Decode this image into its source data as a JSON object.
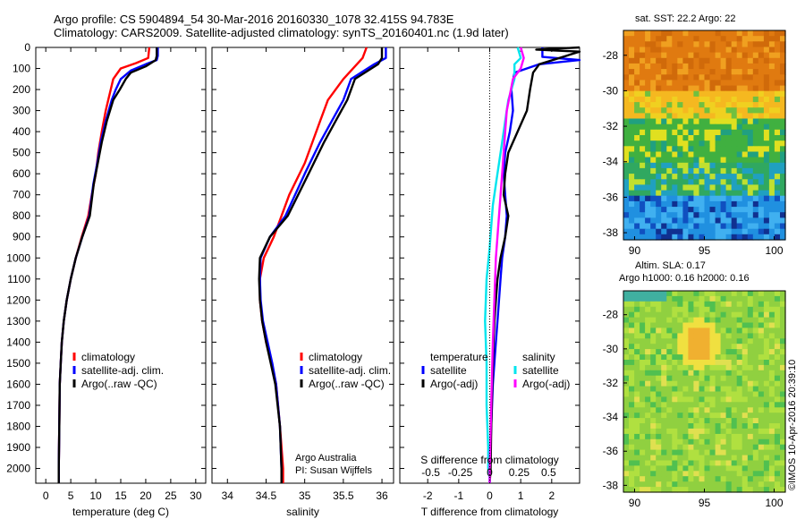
{
  "header": {
    "line1": "Argo profile: CS 5904894_54 30-Mar-2016 20160330_1078 32.415S 94.783E",
    "line2": "Climatology: CARS2009. Satellite-adjusted climatology: synTS_20160401.nc (1.9d later)"
  },
  "credit": {
    "line1": "Argo Australia",
    "line2": "PI: Susan Wijffels"
  },
  "watermark": "©IMOS 10-Apr-2016 20:39:10",
  "map_titles": {
    "sst": "sat. SST: 22.2 Argo: 22",
    "sla1": "Altim. SLA: 0.17",
    "sla2": "Argo h1000: 0.16 h2000: 0.16"
  },
  "colors": {
    "climatology": "#ff0000",
    "satellite": "#0000ff",
    "argo": "#000000",
    "s_satellite": "#00e5ee",
    "s_argo": "#ff00ff"
  },
  "chart_data": [
    {
      "type": "line",
      "title": "",
      "xlabel": "temperature (deg C)",
      "ylabel": "",
      "xlim": [
        -2,
        32
      ],
      "xticks": [
        0,
        5,
        10,
        15,
        20,
        25,
        30
      ],
      "ylim": [
        2070,
        0
      ],
      "yticks": [
        0,
        100,
        200,
        300,
        400,
        500,
        600,
        700,
        800,
        900,
        1000,
        1100,
        1200,
        1300,
        1400,
        1500,
        1600,
        1700,
        1800,
        1900,
        2000
      ],
      "legend": [
        "climatology",
        "satellite-adj. clim.",
        "Argo(..raw -QC)"
      ],
      "series": [
        {
          "name": "climatology",
          "color": "#ff0000",
          "x": [
            20.7,
            20.5,
            18,
            15,
            13.5,
            13,
            12.5,
            12,
            11.2,
            10.5,
            10,
            9.2,
            8.5,
            7.2,
            6,
            5,
            4.2,
            3.6,
            3.2,
            3,
            2.8,
            2.7,
            2.6,
            2.6
          ],
          "y": [
            0,
            50,
            75,
            100,
            150,
            200,
            250,
            300,
            400,
            500,
            600,
            700,
            800,
            900,
            1000,
            1100,
            1200,
            1300,
            1400,
            1500,
            1600,
            1800,
            2000,
            2070
          ]
        },
        {
          "name": "satellite-adj. clim.",
          "color": "#0000ff",
          "x": [
            22.4,
            22.4,
            22.2,
            20,
            17,
            15,
            14,
            13.2,
            12,
            11,
            10.3,
            9.5,
            8.7,
            7.3,
            6,
            5,
            4.2,
            3.6,
            3.2,
            3,
            2.8,
            2.7,
            2.6,
            2.6
          ],
          "y": [
            0,
            40,
            60,
            80,
            110,
            150,
            200,
            250,
            350,
            450,
            550,
            650,
            800,
            900,
            1000,
            1100,
            1200,
            1300,
            1400,
            1500,
            1600,
            1800,
            2000,
            2070
          ]
        },
        {
          "name": "Argo(..raw -QC)",
          "color": "#000000",
          "x": [
            22.2,
            22.2,
            22,
            20,
            17,
            16,
            14.8,
            13.5,
            12.2,
            11.2,
            10.4,
            9.6,
            8.8,
            7.3,
            6,
            5,
            4.2,
            3.6,
            3.2,
            3,
            2.8,
            2.7,
            2.6,
            2.6
          ],
          "y": [
            0,
            40,
            60,
            90,
            120,
            150,
            200,
            250,
            350,
            450,
            550,
            650,
            800,
            900,
            1000,
            1100,
            1200,
            1300,
            1400,
            1500,
            1600,
            1800,
            2000,
            2070
          ]
        }
      ]
    },
    {
      "type": "line",
      "title": "",
      "xlabel": "salinity",
      "ylabel": "",
      "xlim": [
        33.8,
        36.15
      ],
      "xticks": [
        34,
        34.5,
        35,
        35.5,
        36
      ],
      "ylim": [
        2070,
        0
      ],
      "legend": [
        "climatology",
        "satellite-adj. clim.",
        "Argo(..raw -QC)"
      ],
      "series": [
        {
          "name": "climatology",
          "color": "#ff0000",
          "x": [
            35.8,
            35.75,
            35.5,
            35.3,
            35.2,
            35.1,
            35.0,
            34.8,
            34.6,
            34.47,
            34.42,
            34.42,
            34.45,
            34.5,
            34.57,
            34.63,
            34.68,
            34.72,
            34.72
          ],
          "y": [
            0,
            50,
            150,
            250,
            350,
            450,
            550,
            700,
            900,
            1000,
            1100,
            1200,
            1300,
            1400,
            1500,
            1600,
            1800,
            2000,
            2070
          ]
        },
        {
          "name": "satellite-adj. clim.",
          "color": "#0000ff",
          "x": [
            36.05,
            36.05,
            35.9,
            35.6,
            35.5,
            35.35,
            35.2,
            35.0,
            34.75,
            34.55,
            34.43,
            34.42,
            34.43,
            34.46,
            34.52,
            34.58,
            34.63,
            34.68,
            34.7,
            34.7
          ],
          "y": [
            0,
            50,
            80,
            150,
            250,
            350,
            450,
            600,
            800,
            900,
            1000,
            1100,
            1200,
            1300,
            1400,
            1500,
            1600,
            1800,
            2000,
            2070
          ]
        },
        {
          "name": "Argo(..raw -QC)",
          "color": "#000000",
          "x": [
            36.0,
            36.0,
            35.95,
            35.65,
            35.55,
            35.4,
            35.25,
            35.05,
            34.78,
            34.55,
            34.42,
            34.41,
            34.42,
            34.45,
            34.5,
            34.56,
            34.62,
            34.68,
            34.7,
            34.7
          ],
          "y": [
            0,
            50,
            80,
            150,
            250,
            350,
            450,
            600,
            800,
            900,
            1000,
            1100,
            1200,
            1300,
            1400,
            1500,
            1600,
            1800,
            2000,
            2070
          ]
        }
      ]
    },
    {
      "type": "line",
      "title": "",
      "xlabel": "T difference from climatology",
      "ylabel": "",
      "xlim": [
        -2.9,
        2.9
      ],
      "xticks": [
        -2,
        -1,
        0,
        1,
        2
      ],
      "top_axis_label": "S difference from climatology",
      "top_axis_ticks": [
        "-0.5",
        "-0.25",
        "0",
        "0.25",
        "0.5"
      ],
      "ylim": [
        2070,
        0
      ],
      "legend_groups": [
        "temperature",
        "salinity"
      ],
      "legend": [
        "satellite",
        "Argo(-adj)",
        "satellite",
        "Argo(-adj)"
      ],
      "series": [
        {
          "name": "satellite",
          "color": "#0000ff",
          "x": [
            1.7,
            1.7,
            2.9,
            1.6,
            0.8,
            0.7,
            0.75,
            0.65,
            0.5,
            0.45,
            0.5,
            0.55,
            0.5,
            0.4,
            0.35,
            0.3,
            0.25,
            0.2,
            0.15,
            0.1,
            0.05,
            0.0,
            0.0
          ],
          "y": [
            0,
            45,
            60,
            80,
            120,
            200,
            300,
            400,
            500,
            600,
            700,
            800,
            900,
            1000,
            1100,
            1200,
            1300,
            1400,
            1500,
            1600,
            1800,
            2000,
            2070
          ]
        },
        {
          "name": "Argo(-adj)",
          "color": "#000000",
          "x": [
            2.9,
            1.5,
            2.9,
            1.6,
            1.4,
            1.3,
            1.2,
            0.9,
            0.6,
            0.5,
            0.45,
            0.6,
            0.5,
            0.35,
            0.25,
            0.2,
            0.15,
            0.12,
            0.1,
            0.08,
            0.05,
            0.03,
            0.0
          ],
          "y": [
            0,
            10,
            20,
            80,
            120,
            200,
            300,
            400,
            500,
            600,
            700,
            800,
            900,
            1000,
            1100,
            1200,
            1300,
            1400,
            1500,
            1600,
            1800,
            2000,
            2070
          ]
        },
        {
          "name": "satellite",
          "color": "#00e5ee",
          "x": [
            0.9,
            1.0,
            0.8,
            0.8,
            0.6,
            0.5,
            0.4,
            0.3,
            0.2,
            0.1,
            0.05,
            0.0,
            -0.1,
            -0.15,
            -0.1,
            -0.1,
            -0.05,
            -0.05,
            0.0,
            0.0
          ],
          "y": [
            0,
            50,
            80,
            150,
            250,
            350,
            450,
            550,
            650,
            750,
            850,
            950,
            1100,
            1300,
            1500,
            1700,
            1900,
            2000,
            2050,
            2070
          ]
        },
        {
          "name": "Argo(-adj)",
          "color": "#ff00ff",
          "x": [
            1.0,
            1.1,
            1.0,
            0.75,
            0.55,
            0.5,
            0.45,
            0.4,
            0.3,
            0.2,
            0.15,
            0.1,
            0.05,
            0.0,
            0.0
          ],
          "y": [
            0,
            50,
            100,
            150,
            300,
            400,
            500,
            600,
            800,
            1000,
            1200,
            1400,
            1700,
            2000,
            2070
          ]
        }
      ]
    },
    {
      "type": "heatmap",
      "title": "sat. SST: 22.2 Argo: 22",
      "xlabel": "",
      "ylabel": "",
      "xticks": [
        90,
        95,
        100
      ],
      "yticks": [
        -28,
        -30,
        -32,
        -34,
        -36,
        -38
      ],
      "xlim": [
        89.2,
        100.8
      ],
      "ylim": [
        -38.4,
        -26.6
      ]
    },
    {
      "type": "heatmap",
      "title": "Altim. SLA: 0.17",
      "xlabel": "",
      "ylabel": "",
      "xticks": [
        90,
        95,
        100
      ],
      "yticks": [
        -28,
        -30,
        -32,
        -34,
        -36,
        -38
      ],
      "xlim": [
        89.2,
        100.8
      ],
      "ylim": [
        -38.4,
        -26.6
      ]
    }
  ]
}
